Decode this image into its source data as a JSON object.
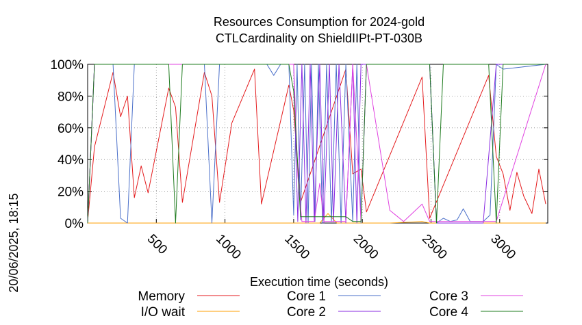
{
  "chart_data": {
    "type": "line",
    "title": "Resources Consumption for 2024-gold",
    "subtitle": "CTLCardinality on ShieldIIPt-PT-030B",
    "xlabel": "Execution time (seconds)",
    "ylabel": "",
    "timestamp": "20/06/2025, 18:15",
    "xlim": [
      0,
      3350
    ],
    "ylim": [
      0,
      100
    ],
    "xticks": [
      500,
      1000,
      1500,
      2000,
      2500,
      3000
    ],
    "xtick_labels": [
      "500",
      "1000",
      "1500",
      "2000",
      "2500",
      "3000"
    ],
    "yticks": [
      0,
      20,
      40,
      60,
      80,
      100
    ],
    "ytick_labels": [
      "0%",
      "20%",
      "40%",
      "60%",
      "80%",
      "100%"
    ],
    "grid": true,
    "legend_position": "bottom",
    "series": [
      {
        "name": "Memory",
        "color": "#e41a1c",
        "x": [
          0,
          50,
          185,
          240,
          290,
          340,
          390,
          440,
          590,
          640,
          690,
          850,
          905,
          960,
          1050,
          1215,
          1265,
          1465,
          1500,
          1550,
          1880,
          1930,
          1990,
          2030,
          2435,
          2490,
          2920,
          2975,
          3025,
          3075,
          3125,
          3175,
          3235,
          3285,
          3335
        ],
        "y": [
          1,
          48,
          95,
          67,
          80,
          16,
          36,
          19,
          85,
          73,
          13,
          95,
          80,
          13,
          63,
          97,
          12,
          87,
          71,
          13,
          97,
          31,
          34,
          7,
          92,
          3,
          93,
          42,
          31,
          8,
          32,
          17,
          6,
          34,
          12
        ]
      },
      {
        "name": "I/O wait",
        "color": "#ff9f00",
        "x": [
          0,
          1500,
          1560,
          1625,
          1690,
          1750,
          1815,
          1880,
          2000,
          2200,
          2435,
          2490,
          2750,
          3000,
          3335
        ],
        "y": [
          0,
          0,
          0,
          0,
          0,
          6,
          0,
          0,
          0,
          0,
          1,
          0,
          0,
          0,
          0
        ]
      },
      {
        "name": "Core 1",
        "color": "#4a6fc9",
        "x": [
          0,
          50,
          185,
          240,
          290,
          340,
          850,
          905,
          960,
          1305,
          1355,
          1405,
          1465,
          1500,
          1525,
          1550,
          1580,
          1605,
          1630,
          1655,
          1680,
          1710,
          1740,
          1775,
          1810,
          1845,
          1880,
          1930,
          1960,
          1990,
          2030,
          2490,
          2540,
          2590,
          2640,
          2690,
          2735,
          2785,
          2835,
          2880,
          2930,
          2975,
          3025,
          3335
        ],
        "y": [
          0,
          100,
          100,
          3,
          0,
          100,
          100,
          0,
          100,
          100,
          93,
          100,
          100,
          5,
          100,
          2,
          100,
          0,
          100,
          1,
          100,
          0,
          100,
          1,
          100,
          0,
          100,
          1,
          100,
          0,
          100,
          100,
          0,
          3,
          1,
          2,
          9,
          1,
          1,
          1,
          5,
          100,
          97,
          100
        ]
      },
      {
        "name": "Core 2",
        "color": "#8a2be2",
        "x": [
          0,
          50,
          1500,
          1530,
          1560,
          1590,
          1620,
          1650,
          1690,
          1720,
          1760,
          1790,
          1830,
          1880,
          1930,
          1960,
          1990,
          2030,
          2490,
          2540,
          2640,
          2760,
          2880,
          2975,
          3335
        ],
        "y": [
          0,
          100,
          100,
          1,
          100,
          0,
          100,
          1,
          100,
          0,
          100,
          1,
          100,
          0,
          100,
          0,
          100,
          100,
          100,
          0,
          0,
          0,
          0,
          100,
          100
        ]
      },
      {
        "name": "Core 3",
        "color": "#e040e0",
        "x": [
          0,
          50,
          1500,
          1530,
          1560,
          1600,
          1650,
          1690,
          1720,
          1760,
          1800,
          1850,
          1880,
          1930,
          1990,
          2030,
          2200,
          2300,
          2435,
          2490,
          2600,
          2750,
          2975,
          3335
        ],
        "y": [
          0,
          100,
          100,
          30,
          1,
          1,
          1,
          25,
          1,
          1,
          1,
          1,
          1,
          100,
          1,
          100,
          8,
          1,
          12,
          1,
          1,
          1,
          1,
          100
        ]
      },
      {
        "name": "Core 4",
        "color": "#1e7b1e",
        "x": [
          0,
          50,
          590,
          640,
          690,
          850,
          1465,
          1500,
          1550,
          1880,
          1930,
          1960,
          1990,
          2030,
          2450,
          2490,
          2540,
          2590,
          2920,
          2975,
          3025,
          3335
        ],
        "y": [
          0,
          100,
          100,
          0,
          100,
          100,
          100,
          83,
          4,
          4,
          1,
          1,
          1,
          100,
          100,
          100,
          0,
          100,
          100,
          0,
          100,
          100
        ]
      }
    ]
  }
}
